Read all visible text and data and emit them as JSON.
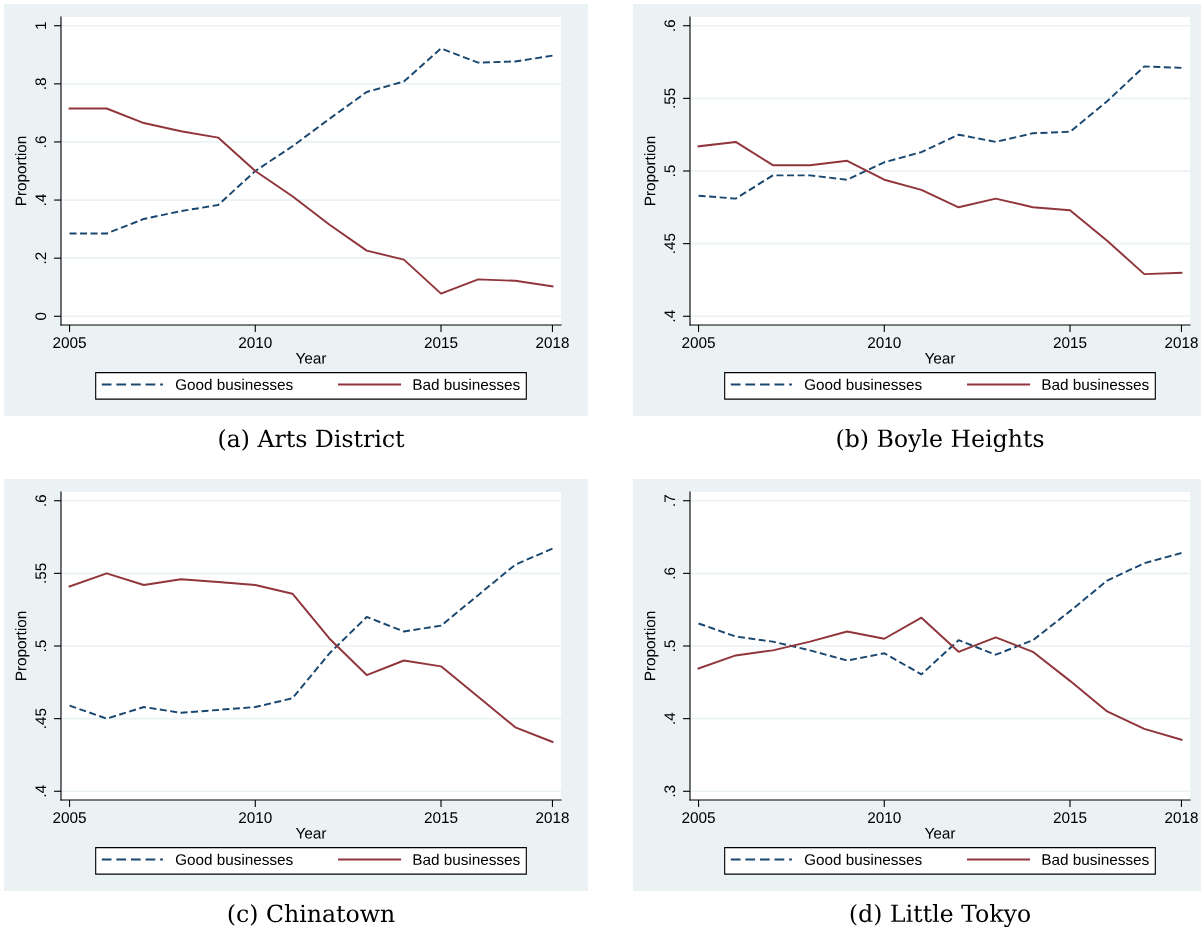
{
  "chart_data": [
    {
      "type": "line",
      "title": "(a) Arts District",
      "xlabel": "Year",
      "ylabel": "Proportion",
      "x": [
        2005,
        2006,
        2007,
        2008,
        2009,
        2010,
        2011,
        2012,
        2013,
        2014,
        2015,
        2016,
        2017,
        2018
      ],
      "series": [
        {
          "name": "Good businesses",
          "color": "#1a476f",
          "line_style": "dashed",
          "values": [
            0.285,
            0.285,
            0.335,
            0.362,
            0.383,
            0.5,
            0.585,
            0.68,
            0.772,
            0.808,
            0.922,
            0.873,
            0.877,
            0.897
          ]
        },
        {
          "name": "Bad businesses",
          "color": "#90353b",
          "line_style": "solid",
          "values": [
            0.715,
            0.715,
            0.665,
            0.637,
            0.615,
            0.5,
            0.413,
            0.315,
            0.226,
            0.195,
            0.078,
            0.127,
            0.122,
            0.103
          ]
        }
      ],
      "xlim": [
        2004.77,
        2018.23
      ],
      "xticks": [
        2005,
        2010,
        2015,
        2018
      ],
      "ylim": [
        -0.03,
        1.03
      ],
      "yticks": [
        {
          "value": 0,
          "label": "0"
        },
        {
          "value": 0.2,
          "label": ".2"
        },
        {
          "value": 0.4,
          "label": ".4"
        },
        {
          "value": 0.6,
          "label": ".6"
        },
        {
          "value": 0.8,
          "label": ".8"
        },
        {
          "value": 1,
          "label": "1"
        }
      ],
      "grid": "y",
      "legend": "bottom"
    },
    {
      "type": "line",
      "title": "(b) Boyle Heights",
      "xlabel": "Year",
      "ylabel": "Proportion",
      "x": [
        2005,
        2006,
        2007,
        2008,
        2009,
        2010,
        2011,
        2012,
        2013,
        2014,
        2015,
        2016,
        2017,
        2018
      ],
      "series": [
        {
          "name": "Good businesses",
          "color": "#1a476f",
          "line_style": "dashed",
          "values": [
            0.483,
            0.481,
            0.497,
            0.497,
            0.494,
            0.506,
            0.513,
            0.525,
            0.52,
            0.526,
            0.527,
            0.548,
            0.572,
            0.571
          ]
        },
        {
          "name": "Bad businesses",
          "color": "#90353b",
          "line_style": "solid",
          "values": [
            0.517,
            0.52,
            0.504,
            0.504,
            0.507,
            0.494,
            0.487,
            0.475,
            0.481,
            0.475,
            0.473,
            0.452,
            0.429,
            0.43
          ]
        }
      ],
      "xlim": [
        2004.77,
        2018.23
      ],
      "xticks": [
        2005,
        2010,
        2015,
        2018
      ],
      "ylim": [
        0.394,
        0.606
      ],
      "yticks": [
        {
          "value": 0.4,
          "label": ".4"
        },
        {
          "value": 0.45,
          "label": ".45"
        },
        {
          "value": 0.5,
          "label": ".5"
        },
        {
          "value": 0.55,
          "label": ".55"
        },
        {
          "value": 0.6,
          "label": ".6"
        }
      ],
      "grid": "y",
      "legend": "bottom"
    },
    {
      "type": "line",
      "title": "(c) Chinatown",
      "xlabel": "Year",
      "ylabel": "Proportion",
      "x": [
        2005,
        2006,
        2007,
        2008,
        2009,
        2010,
        2011,
        2012,
        2013,
        2014,
        2015,
        2016,
        2017,
        2018
      ],
      "series": [
        {
          "name": "Good businesses",
          "color": "#1a476f",
          "line_style": "dashed",
          "values": [
            0.459,
            0.45,
            0.458,
            0.454,
            0.456,
            0.458,
            0.464,
            0.495,
            0.52,
            0.51,
            0.514,
            0.535,
            0.556,
            0.567
          ]
        },
        {
          "name": "Bad businesses",
          "color": "#90353b",
          "line_style": "solid",
          "values": [
            0.541,
            0.55,
            0.542,
            0.546,
            0.544,
            0.542,
            0.536,
            0.505,
            0.48,
            0.49,
            0.486,
            0.465,
            0.444,
            0.434
          ]
        }
      ],
      "xlim": [
        2004.77,
        2018.23
      ],
      "xticks": [
        2005,
        2010,
        2015,
        2018
      ],
      "ylim": [
        0.394,
        0.606
      ],
      "yticks": [
        {
          "value": 0.4,
          "label": ".4"
        },
        {
          "value": 0.45,
          "label": ".45"
        },
        {
          "value": 0.5,
          "label": ".5"
        },
        {
          "value": 0.55,
          "label": ".55"
        },
        {
          "value": 0.6,
          "label": ".6"
        }
      ],
      "grid": "y",
      "legend": "bottom"
    },
    {
      "type": "line",
      "title": "(d) Little Tokyo",
      "xlabel": "Year",
      "ylabel": "Proportion",
      "x": [
        2005,
        2006,
        2007,
        2008,
        2009,
        2010,
        2011,
        2012,
        2013,
        2014,
        2015,
        2016,
        2017,
        2018
      ],
      "series": [
        {
          "name": "Good businesses",
          "color": "#1a476f",
          "line_style": "dashed",
          "values": [
            0.531,
            0.513,
            0.506,
            0.494,
            0.48,
            0.49,
            0.461,
            0.508,
            0.488,
            0.508,
            0.548,
            0.59,
            0.614,
            0.628
          ]
        },
        {
          "name": "Bad businesses",
          "color": "#90353b",
          "line_style": "solid",
          "values": [
            0.469,
            0.487,
            0.494,
            0.506,
            0.52,
            0.51,
            0.539,
            0.492,
            0.512,
            0.492,
            0.452,
            0.41,
            0.386,
            0.371
          ]
        }
      ],
      "xlim": [
        2004.77,
        2018.23
      ],
      "xticks": [
        2005,
        2010,
        2015,
        2018
      ],
      "ylim": [
        0.288,
        0.712
      ],
      "yticks": [
        {
          "value": 0.3,
          "label": ".3"
        },
        {
          "value": 0.4,
          "label": ".4"
        },
        {
          "value": 0.5,
          "label": ".5"
        },
        {
          "value": 0.6,
          "label": ".6"
        },
        {
          "value": 0.7,
          "label": ".7"
        }
      ],
      "grid": "y",
      "legend": "bottom"
    }
  ]
}
